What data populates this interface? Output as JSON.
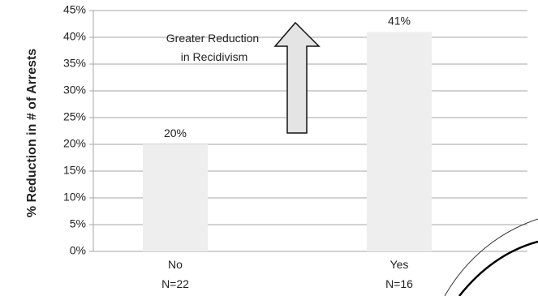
{
  "chart_data": {
    "type": "bar",
    "ylabel": "% Reduction in # of Arrests",
    "ylim": [
      0,
      45
    ],
    "y_ticks": [
      "0%",
      "5%",
      "10%",
      "15%",
      "20%",
      "25%",
      "30%",
      "35%",
      "40%",
      "45%"
    ],
    "categories": [
      {
        "name": "No",
        "n": "N=22"
      },
      {
        "name": "Yes",
        "n": "N=16"
      }
    ],
    "values": [
      20,
      41
    ],
    "data_labels": [
      "20%",
      "41%"
    ],
    "grid": true,
    "bar_color": "#eeeeee",
    "annotation": {
      "line1": "Greater Reduction",
      "line2": "in Recidivism"
    }
  }
}
